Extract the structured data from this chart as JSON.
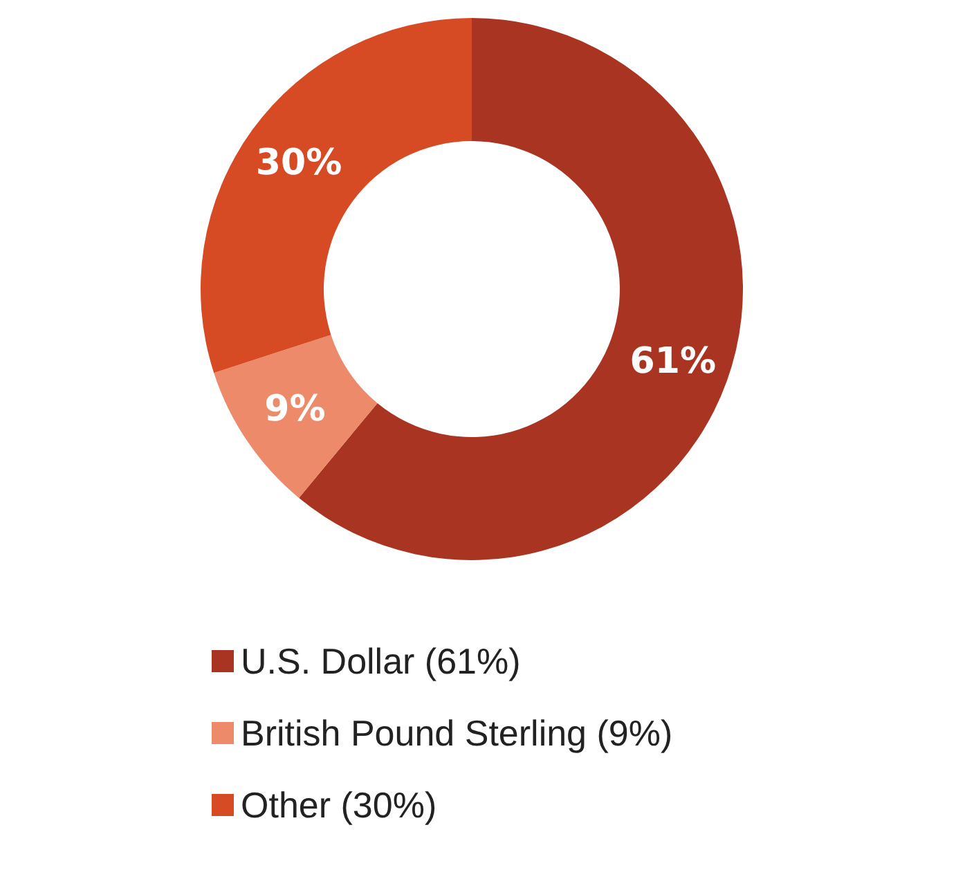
{
  "chart_data": {
    "type": "donut",
    "categories": [
      "U.S. Dollar (61%)",
      "British Pound Sterling (9%)",
      "Other (30%)"
    ],
    "values": [
      61,
      9,
      30
    ],
    "colors": [
      "#a83421",
      "#ec8a6a",
      "#d64a24"
    ],
    "value_labels": [
      "61%",
      "9%",
      "30%"
    ],
    "legend": "bottom"
  }
}
